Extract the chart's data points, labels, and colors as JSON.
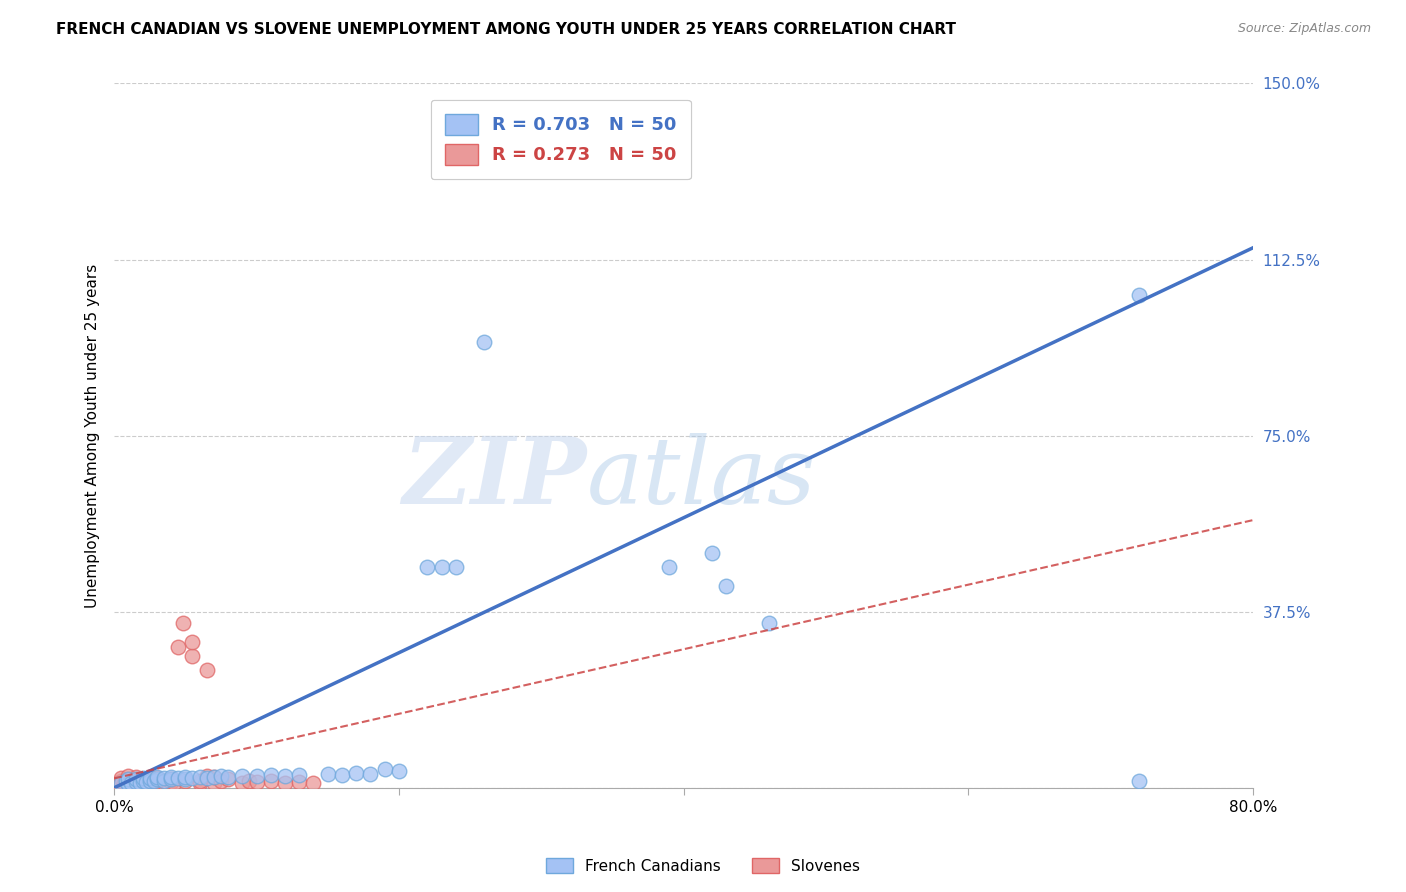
{
  "title": "FRENCH CANADIAN VS SLOVENE UNEMPLOYMENT AMONG YOUTH UNDER 25 YEARS CORRELATION CHART",
  "source": "Source: ZipAtlas.com",
  "ylabel": "Unemployment Among Youth under 25 years",
  "xlim": [
    0.0,
    0.8
  ],
  "ylim": [
    0.0,
    1.5
  ],
  "xticks": [
    0.0,
    0.2,
    0.4,
    0.6,
    0.8
  ],
  "xtick_labels": [
    "0.0%",
    "",
    "",
    "",
    "80.0%"
  ],
  "ytick_labels": [
    "",
    "37.5%",
    "75.0%",
    "112.5%",
    "150.0%"
  ],
  "ytick_positions": [
    0.0,
    0.375,
    0.75,
    1.125,
    1.5
  ],
  "legend_fc_label": "R = 0.703   N = 50",
  "legend_sl_label": "R = 0.273   N = 50",
  "legend_bottom": [
    "French Canadians",
    "Slovenes"
  ],
  "fc_color": "#a4c2f4",
  "sl_color": "#ea9999",
  "fc_color_edge": "#6fa8dc",
  "sl_color_edge": "#e06666",
  "fc_line_color": "#4472c4",
  "sl_line_color": "#cc4444",
  "watermark_zip": "ZIP",
  "watermark_atlas": "atlas",
  "fc_line": [
    [
      0.0,
      0.0
    ],
    [
      0.8,
      1.15
    ]
  ],
  "sl_line": [
    [
      0.0,
      0.02
    ],
    [
      0.8,
      0.57
    ]
  ],
  "fc_scatter": [
    [
      0.005,
      0.01
    ],
    [
      0.008,
      0.015
    ],
    [
      0.01,
      0.008
    ],
    [
      0.01,
      0.018
    ],
    [
      0.012,
      0.01
    ],
    [
      0.015,
      0.012
    ],
    [
      0.015,
      0.018
    ],
    [
      0.018,
      0.01
    ],
    [
      0.02,
      0.015
    ],
    [
      0.02,
      0.02
    ],
    [
      0.022,
      0.012
    ],
    [
      0.025,
      0.015
    ],
    [
      0.025,
      0.02
    ],
    [
      0.028,
      0.015
    ],
    [
      0.03,
      0.018
    ],
    [
      0.03,
      0.022
    ],
    [
      0.035,
      0.015
    ],
    [
      0.035,
      0.02
    ],
    [
      0.04,
      0.018
    ],
    [
      0.04,
      0.022
    ],
    [
      0.045,
      0.02
    ],
    [
      0.05,
      0.018
    ],
    [
      0.05,
      0.022
    ],
    [
      0.055,
      0.02
    ],
    [
      0.06,
      0.022
    ],
    [
      0.065,
      0.02
    ],
    [
      0.07,
      0.022
    ],
    [
      0.075,
      0.025
    ],
    [
      0.08,
      0.022
    ],
    [
      0.09,
      0.025
    ],
    [
      0.1,
      0.025
    ],
    [
      0.11,
      0.028
    ],
    [
      0.12,
      0.025
    ],
    [
      0.13,
      0.028
    ],
    [
      0.15,
      0.03
    ],
    [
      0.16,
      0.028
    ],
    [
      0.17,
      0.032
    ],
    [
      0.18,
      0.03
    ],
    [
      0.19,
      0.04
    ],
    [
      0.2,
      0.035
    ],
    [
      0.22,
      0.47
    ],
    [
      0.23,
      0.47
    ],
    [
      0.24,
      0.47
    ],
    [
      0.26,
      0.95
    ],
    [
      0.39,
      0.47
    ],
    [
      0.42,
      0.5
    ],
    [
      0.43,
      0.43
    ],
    [
      0.46,
      0.35
    ],
    [
      0.72,
      1.05
    ],
    [
      0.72,
      0.015
    ]
  ],
  "sl_scatter": [
    [
      0.003,
      0.01
    ],
    [
      0.005,
      0.015
    ],
    [
      0.005,
      0.02
    ],
    [
      0.007,
      0.01
    ],
    [
      0.008,
      0.008
    ],
    [
      0.008,
      0.015
    ],
    [
      0.01,
      0.01
    ],
    [
      0.01,
      0.018
    ],
    [
      0.01,
      0.025
    ],
    [
      0.012,
      0.012
    ],
    [
      0.015,
      0.01
    ],
    [
      0.015,
      0.015
    ],
    [
      0.015,
      0.022
    ],
    [
      0.018,
      0.01
    ],
    [
      0.02,
      0.012
    ],
    [
      0.02,
      0.018
    ],
    [
      0.022,
      0.01
    ],
    [
      0.025,
      0.015
    ],
    [
      0.025,
      0.02
    ],
    [
      0.028,
      0.012
    ],
    [
      0.03,
      0.01
    ],
    [
      0.03,
      0.015
    ],
    [
      0.03,
      0.02
    ],
    [
      0.032,
      0.012
    ],
    [
      0.035,
      0.01
    ],
    [
      0.035,
      0.015
    ],
    [
      0.038,
      0.01
    ],
    [
      0.04,
      0.012
    ],
    [
      0.04,
      0.018
    ],
    [
      0.042,
      0.01
    ],
    [
      0.045,
      0.3
    ],
    [
      0.048,
      0.35
    ],
    [
      0.05,
      0.015
    ],
    [
      0.055,
      0.28
    ],
    [
      0.055,
      0.31
    ],
    [
      0.06,
      0.01
    ],
    [
      0.06,
      0.015
    ],
    [
      0.065,
      0.025
    ],
    [
      0.065,
      0.25
    ],
    [
      0.07,
      0.01
    ],
    [
      0.07,
      0.022
    ],
    [
      0.075,
      0.015
    ],
    [
      0.08,
      0.018
    ],
    [
      0.09,
      0.01
    ],
    [
      0.095,
      0.015
    ],
    [
      0.1,
      0.012
    ],
    [
      0.11,
      0.015
    ],
    [
      0.12,
      0.01
    ],
    [
      0.13,
      0.012
    ],
    [
      0.14,
      0.01
    ]
  ]
}
